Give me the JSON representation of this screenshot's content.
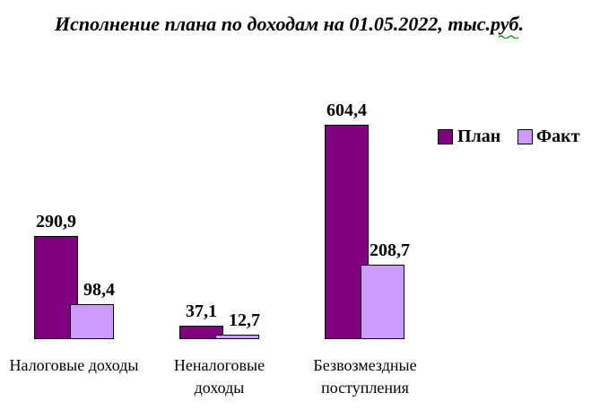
{
  "window": {
    "background": "#FFFFFF"
  },
  "title": "Исполнение плана по доходам на 01.05.2022, тыс.руб.",
  "chart_data": {
    "type": "bar",
    "title": "Исполнение плана по доходам на 01.05.2022, тыс.руб.",
    "categories": [
      "Налоговые доходы",
      "Неналоговые доходы",
      "Безвозмездные поступления"
    ],
    "category_lines": [
      [
        "Налоговые доходы"
      ],
      [
        "Неналоговые",
        "доходы"
      ],
      [
        "Безвозмездные",
        "поступления"
      ]
    ],
    "series": [
      {
        "name": "План",
        "color": "#800080",
        "values": [
          290.9,
          37.1,
          604.4
        ],
        "labels": [
          "290,9",
          "37,1",
          "604,4"
        ]
      },
      {
        "name": "Факт",
        "color": "#CC99FF",
        "values": [
          98.4,
          12.7,
          208.7
        ],
        "labels": [
          "98,4",
          "12,7",
          "208,7"
        ]
      }
    ],
    "legend_position": "right",
    "value_labels_visible": true,
    "axes_visible": false,
    "grid": false,
    "ylim": [
      0,
      650
    ],
    "bar_border_color": "#000000",
    "spellcheck_underline_color": "#008000"
  }
}
